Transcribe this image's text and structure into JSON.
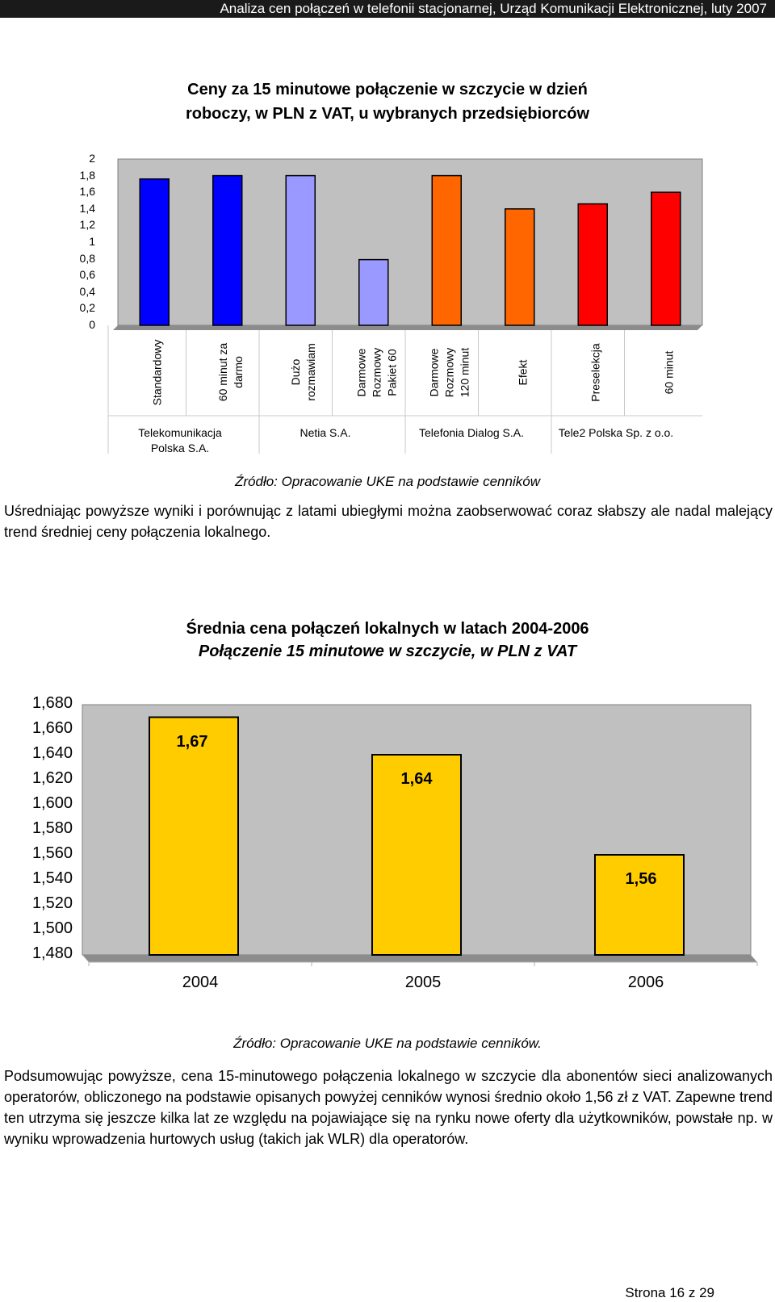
{
  "header": {
    "text": "Analiza cen połączeń w telefonii stacjonarnej, Urząd Komunikacji Elektronicznej, luty 2007"
  },
  "chart1": {
    "title_line1": "Ceny za 15 minutowe połączenie w szczycie w dzień",
    "title_line2": "roboczy, w PLN z VAT, u wybranych przedsiębiorców",
    "y_ticks": [
      "2",
      "1,8",
      "1,6",
      "1,4",
      "1,2",
      "1",
      "0,8",
      "0,6",
      "0,4",
      "0,2",
      "0"
    ],
    "groups": [
      {
        "line1": "Telekomunikacja",
        "line2": "Polska S.A."
      },
      {
        "line1": "Netia S.A.",
        "line2": ""
      },
      {
        "line1": "Telefonia Dialog S.A.",
        "line2": ""
      },
      {
        "line1": "Tele2 Polska Sp. z o.o.",
        "line2": ""
      }
    ],
    "categories": [
      [
        "Standardowy"
      ],
      [
        "60 minut za",
        "darmo"
      ],
      [
        "Dużo",
        "rozmawiam"
      ],
      [
        "Darmowe",
        "Rozmowy",
        "Pakiet 60"
      ],
      [
        "Darmowe",
        "Rozmowy",
        "120 minut"
      ],
      [
        "Efekt"
      ],
      [
        "Preselekcja"
      ],
      [
        "60 minut"
      ]
    ],
    "source": "Źródło: Opracowanie UKE na podstawie cenników"
  },
  "paragraph1": "Uśredniając powyższe wyniki i porównując z latami ubiegłymi można zaobserwować coraz słabszy ale nadal malejący trend średniej ceny połączenia lokalnego.",
  "chart2": {
    "title_line1": "Średnia cena połączeń lokalnych w latach 2004-2006",
    "title_line2": "Połączenie 15 minutowe w szczycie, w PLN z VAT",
    "y_ticks": [
      "1,680",
      "1,660",
      "1,640",
      "1,620",
      "1,600",
      "1,580",
      "1,560",
      "1,540",
      "1,520",
      "1,500",
      "1,480"
    ],
    "source": "Źródło: Opracowanie UKE na podstawie cenników."
  },
  "paragraph2": "Podsumowując powyższe, cena 15-minutowego połączenia lokalnego w szczycie dla abonentów sieci analizowanych operatorów, obliczonego na podstawie opisanych powyżej cenników wynosi średnio około 1,56 zł  z VAT.  Zapewne trend ten utrzyma się jeszcze kilka lat ze względu na pojawiające się na rynku nowe oferty dla użytkowników, powstałe np. w wyniku wprowadzenia hurtowych usług (takich jak WLR) dla operatorów.",
  "footer": {
    "page": "Strona 16 z 29"
  },
  "chart_data": [
    {
      "type": "bar",
      "categories": [
        "Standardowy",
        "60 minut za darmo",
        "Dużo rozmawiam",
        "Darmowe Rozmowy Pakiet 60",
        "Darmowe Rozmowy 120 minut",
        "Efekt",
        "Preselekcja",
        "60 minut"
      ],
      "values": [
        1.76,
        1.8,
        1.8,
        0.79,
        1.8,
        1.4,
        1.46,
        1.6
      ],
      "bar_colors": [
        "#0000ff",
        "#0000ff",
        "#9999ff",
        "#9999ff",
        "#ff6600",
        "#ff6600",
        "#ff0000",
        "#ff0000"
      ],
      "title": "Ceny za 15 minutowe połączenie w szczycie w dzień roboczy, w PLN z VAT, u wybranych przedsiębiorców",
      "ylim": [
        0,
        2
      ],
      "grid": false,
      "plot_bg": "#c0c0c0"
    },
    {
      "type": "bar",
      "categories": [
        "2004",
        "2005",
        "2006"
      ],
      "values": [
        1.67,
        1.64,
        1.56
      ],
      "data_labels": [
        "1,67",
        "1,64",
        "1,56"
      ],
      "bar_color": "#ffcc00",
      "title": "Średnia cena połączeń lokalnych w latach 2004-2006",
      "subtitle": "Połączenie 15 minutowe w szczycie, w PLN z VAT",
      "ylim": [
        1.48,
        1.68
      ],
      "grid": false,
      "plot_bg": "#c0c0c0"
    }
  ]
}
